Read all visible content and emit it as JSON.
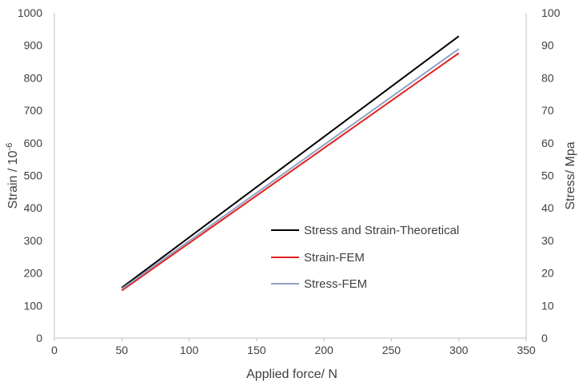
{
  "chart_data": {
    "type": "line",
    "title": "",
    "xlabel": "Applied force/ N",
    "ylabel_left_main": "Strain / 10",
    "ylabel_left_exp": "-6",
    "ylabel_right": "Stress/ Mpa",
    "xlim": [
      0,
      350
    ],
    "ylim": [
      0,
      1000
    ],
    "ylim_right": [
      0,
      100
    ],
    "x_ticks": [
      "0",
      "50",
      "100",
      "150",
      "200",
      "250",
      "300",
      "350"
    ],
    "y_ticks": [
      "0",
      "100",
      "200",
      "300",
      "400",
      "500",
      "600",
      "700",
      "800",
      "900",
      "1000"
    ],
    "y_right_ticks": [
      "0",
      "10",
      "20",
      "30",
      "40",
      "50",
      "60",
      "70",
      "80",
      "90",
      "100"
    ],
    "grid": false,
    "legend_position": "center-right",
    "series": [
      {
        "name": "Stress and Strain-Theoretical",
        "color": "#000000",
        "x": [
          50,
          300
        ],
        "y": [
          155,
          928
        ]
      },
      {
        "name": "Strain-FEM",
        "color": "#e32222",
        "x": [
          50,
          300
        ],
        "y": [
          146,
          876
        ]
      },
      {
        "name": "Stress-FEM",
        "color": "#8ea3c4",
        "x": [
          50,
          300
        ],
        "y": [
          151,
          889
        ]
      }
    ]
  }
}
